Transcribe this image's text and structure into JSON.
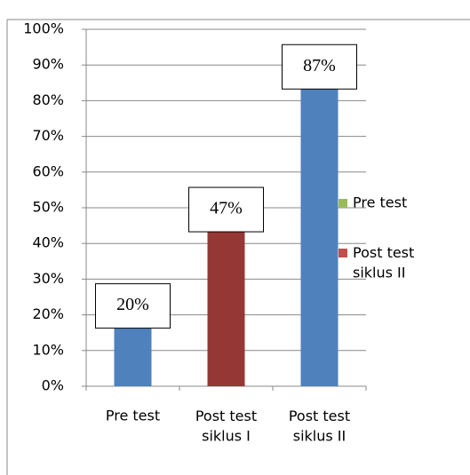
{
  "chart_data": {
    "type": "bar",
    "categories": [
      "Pre test",
      "Post test siklus I",
      "Post test siklus II"
    ],
    "values": [
      20,
      47,
      87
    ],
    "value_labels": [
      "20%",
      "47%",
      "87%"
    ],
    "colors": [
      "#4f81bd",
      "#953735",
      "#4f81bd"
    ],
    "ylim": [
      0,
      100
    ],
    "yticks": [
      {
        "value": 0,
        "label": "0%"
      },
      {
        "value": 10,
        "label": "10%"
      },
      {
        "value": 20,
        "label": "20%"
      },
      {
        "value": 30,
        "label": "30%"
      },
      {
        "value": 40,
        "label": "40%"
      },
      {
        "value": 50,
        "label": "50%"
      },
      {
        "value": 60,
        "label": "60%"
      },
      {
        "value": 70,
        "label": "70%"
      },
      {
        "value": 80,
        "label": "80%"
      },
      {
        "value": 90,
        "label": "90%"
      },
      {
        "value": 100,
        "label": "100%"
      }
    ],
    "grid": true,
    "legend": {
      "position": "right",
      "entries": [
        {
          "name": "Pre test",
          "color": "#9bbb59"
        },
        {
          "name": "Post test siklus II",
          "color": "#c0504d"
        }
      ]
    }
  }
}
